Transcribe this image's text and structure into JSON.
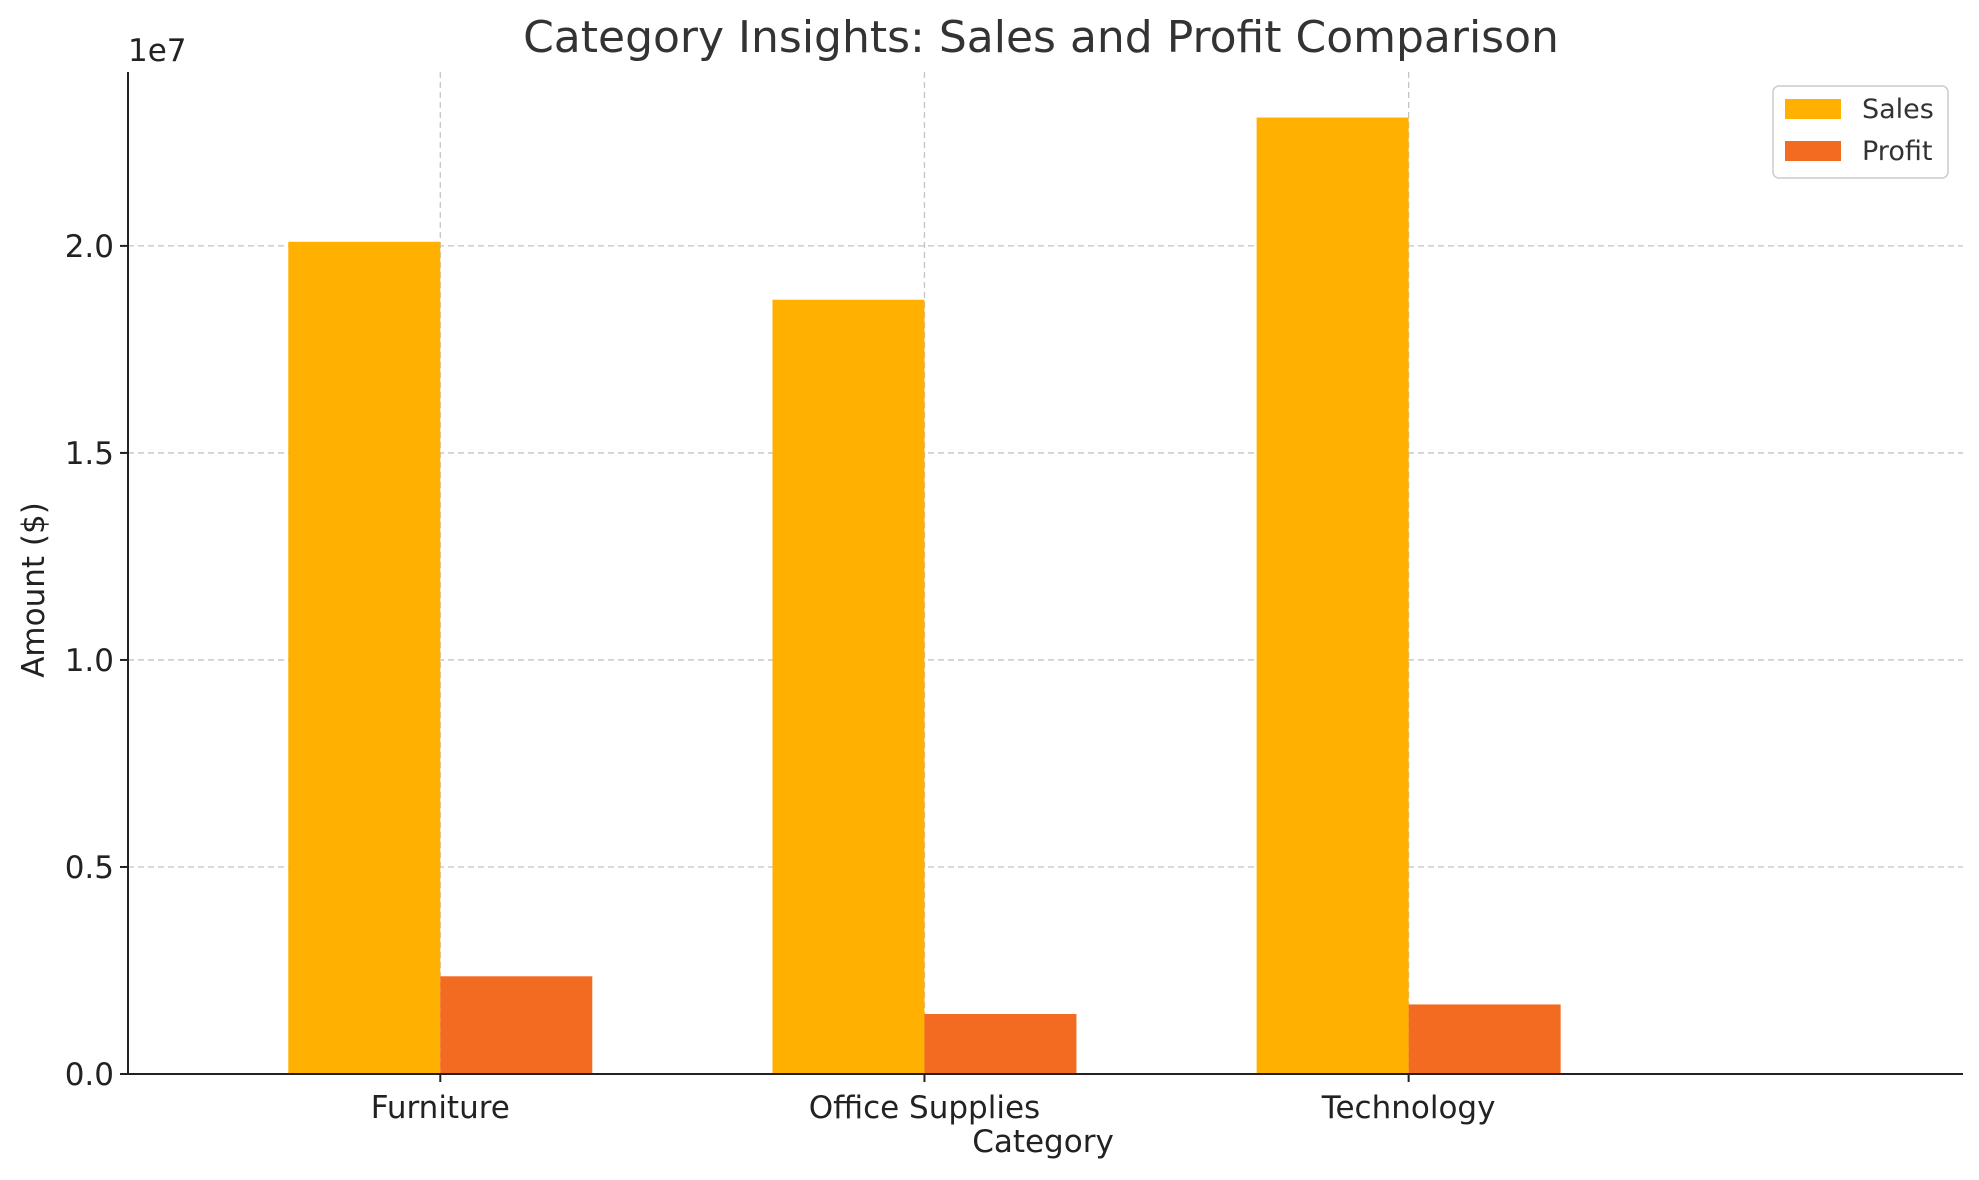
{
  "chart_data": {
    "type": "bar",
    "title": "Category Insights: Sales and Profit Comparison",
    "xlabel": "Category",
    "ylabel": "Amount ($)",
    "offset_label": "1e7",
    "categories": [
      "Furniture",
      "Office Supplies",
      "Technology"
    ],
    "series": [
      {
        "name": "Sales",
        "color": "#FFB000",
        "values": [
          20100000,
          18700000,
          23100000
        ]
      },
      {
        "name": "Profit",
        "color": "#F26B21",
        "values": [
          2360000,
          1450000,
          1680000
        ]
      }
    ],
    "ylim": [
      0,
      24200000
    ],
    "yticks": [
      {
        "value": 0,
        "label": "0.0"
      },
      {
        "value": 5000000,
        "label": "0.5"
      },
      {
        "value": 10000000,
        "label": "1.0"
      },
      {
        "value": 15000000,
        "label": "1.5"
      },
      {
        "value": 20000000,
        "label": "2.0"
      }
    ],
    "grid": true,
    "legend_position": "top-right"
  }
}
